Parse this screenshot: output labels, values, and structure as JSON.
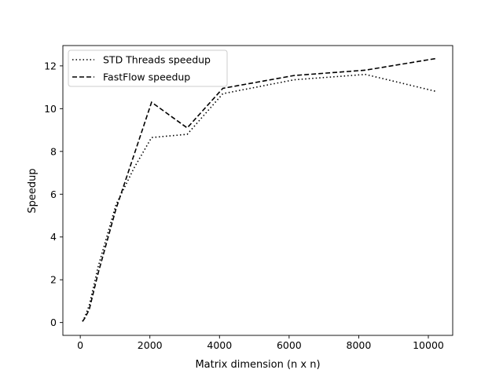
{
  "chart_data": {
    "type": "line",
    "title": "",
    "xlabel": "Matrix dimension (n x n)",
    "ylabel": "Speedup",
    "xlim": [
      -500,
      10700
    ],
    "ylim": [
      -0.6,
      12.95
    ],
    "xticks": [
      0,
      2000,
      4000,
      6000,
      8000,
      10000
    ],
    "yticks": [
      0,
      2,
      4,
      6,
      8,
      10,
      12
    ],
    "grid": false,
    "legend_position": "upper-left",
    "series": [
      {
        "name": "STD Threads speedup",
        "line_style": "dotted",
        "color": "#000000",
        "x": [
          64,
          128,
          256,
          512,
          1024,
          1536,
          2048,
          3072,
          4096,
          6144,
          8192,
          10240
        ],
        "y": [
          0.05,
          0.25,
          0.8,
          2.6,
          5.5,
          7.2,
          8.65,
          8.8,
          10.7,
          11.35,
          11.6,
          10.8
        ]
      },
      {
        "name": "FastFlow speedup",
        "line_style": "dashed",
        "color": "#000000",
        "x": [
          64,
          128,
          256,
          512,
          1024,
          1536,
          2048,
          3072,
          4096,
          6144,
          8192,
          10240
        ],
        "y": [
          0.05,
          0.2,
          0.6,
          2.3,
          5.3,
          7.8,
          10.3,
          9.1,
          10.95,
          11.55,
          11.8,
          12.35
        ]
      }
    ]
  }
}
